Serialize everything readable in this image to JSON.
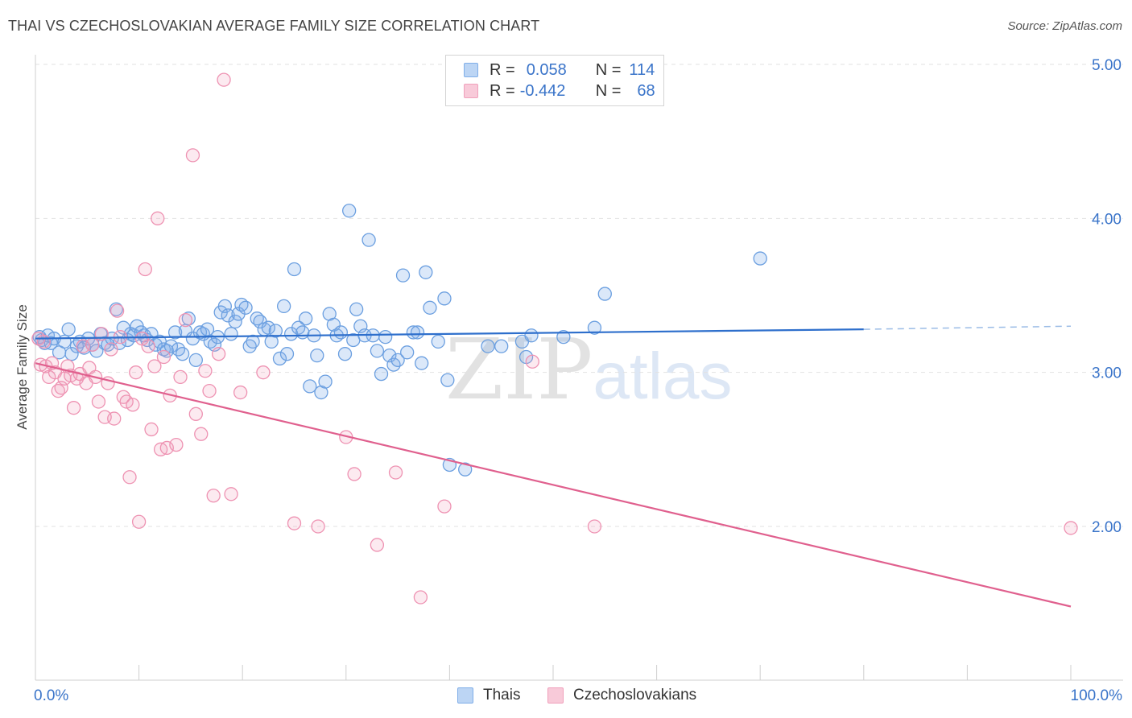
{
  "title": "THAI VS CZECHOSLOVAKIAN AVERAGE FAMILY SIZE CORRELATION CHART",
  "source": "Source: ZipAtlas.com",
  "watermark": {
    "zip": "ZIP",
    "atlas": "atlas"
  },
  "colors": {
    "blue": "#7faee8",
    "blue_line": "#2e6fcc",
    "pink": "#f0a0bb",
    "pink_line": "#e0608e",
    "axis_text": "#3a74c9",
    "grid": "#e2e2e2"
  },
  "legend": {
    "rows": [
      {
        "r_label": "R =",
        "r_value": "0.058",
        "n_label": "N =",
        "n_value": "114"
      },
      {
        "r_label": "R =",
        "r_value": "-0.442",
        "n_label": "N =",
        "n_value": "68"
      }
    ]
  },
  "bottom_legend": {
    "series1": "Thais",
    "series2": "Czechoslovakians"
  },
  "chart_data": {
    "type": "scatter",
    "title": "THAI VS CZECHOSLOVAKIAN AVERAGE FAMILY SIZE CORRELATION CHART",
    "xlabel": "",
    "ylabel": "Average Family Size",
    "xlim": [
      0,
      100
    ],
    "ylim": [
      1.1,
      5.2
    ],
    "x_tick_labels": [
      "0.0%",
      "100.0%"
    ],
    "y_ticks": [
      2.0,
      3.0,
      4.0,
      5.0
    ],
    "y_tick_labels": [
      "2.00",
      "3.00",
      "4.00",
      "5.00"
    ],
    "grid": true,
    "legend_position": "top-center",
    "series": [
      {
        "name": "Thais",
        "color": "#7faee8",
        "trend": {
          "x0": 0,
          "y0": 3.22,
          "x1": 80,
          "y1": 3.28,
          "dash_to": 100,
          "dash_y": 3.3
        },
        "points": [
          [
            0.4,
            3.23
          ],
          [
            0.6,
            3.21
          ],
          [
            0.9,
            3.19
          ],
          [
            1.2,
            3.24
          ],
          [
            1.5,
            3.19
          ],
          [
            1.8,
            3.22
          ],
          [
            2.3,
            3.13
          ],
          [
            2.8,
            3.2
          ],
          [
            3.2,
            3.28
          ],
          [
            3.5,
            3.12
          ],
          [
            4.0,
            3.17
          ],
          [
            4.3,
            3.2
          ],
          [
            4.7,
            3.16
          ],
          [
            5.1,
            3.22
          ],
          [
            5.5,
            3.18
          ],
          [
            5.9,
            3.14
          ],
          [
            6.3,
            3.25
          ],
          [
            6.7,
            3.19
          ],
          [
            7.0,
            3.18
          ],
          [
            7.4,
            3.22
          ],
          [
            7.8,
            3.41
          ],
          [
            8.1,
            3.19
          ],
          [
            8.5,
            3.29
          ],
          [
            8.9,
            3.21
          ],
          [
            9.2,
            3.25
          ],
          [
            9.5,
            3.24
          ],
          [
            9.8,
            3.3
          ],
          [
            10.2,
            3.26
          ],
          [
            10.5,
            3.24
          ],
          [
            10.8,
            3.21
          ],
          [
            11.2,
            3.25
          ],
          [
            11.6,
            3.18
          ],
          [
            12.0,
            3.2
          ],
          [
            12.4,
            3.15
          ],
          [
            12.7,
            3.14
          ],
          [
            13.1,
            3.17
          ],
          [
            13.5,
            3.26
          ],
          [
            13.8,
            3.15
          ],
          [
            14.2,
            3.12
          ],
          [
            14.5,
            3.27
          ],
          [
            14.8,
            3.35
          ],
          [
            15.2,
            3.22
          ],
          [
            15.5,
            3.08
          ],
          [
            15.9,
            3.26
          ],
          [
            16.2,
            3.25
          ],
          [
            16.6,
            3.28
          ],
          [
            16.9,
            3.2
          ],
          [
            17.3,
            3.18
          ],
          [
            17.6,
            3.23
          ],
          [
            17.9,
            3.39
          ],
          [
            18.3,
            3.43
          ],
          [
            18.6,
            3.37
          ],
          [
            18.9,
            3.25
          ],
          [
            19.3,
            3.33
          ],
          [
            19.6,
            3.38
          ],
          [
            19.9,
            3.44
          ],
          [
            20.3,
            3.42
          ],
          [
            20.7,
            3.17
          ],
          [
            21.0,
            3.2
          ],
          [
            21.4,
            3.35
          ],
          [
            21.7,
            3.33
          ],
          [
            22.1,
            3.28
          ],
          [
            22.5,
            3.29
          ],
          [
            22.8,
            3.2
          ],
          [
            23.2,
            3.27
          ],
          [
            23.6,
            3.09
          ],
          [
            24.0,
            3.43
          ],
          [
            24.3,
            3.12
          ],
          [
            24.7,
            3.25
          ],
          [
            25.0,
            3.67
          ],
          [
            25.4,
            3.29
          ],
          [
            25.8,
            3.26
          ],
          [
            26.1,
            3.35
          ],
          [
            26.5,
            2.91
          ],
          [
            26.9,
            3.24
          ],
          [
            27.2,
            3.11
          ],
          [
            27.6,
            2.87
          ],
          [
            28.0,
            2.94
          ],
          [
            28.4,
            3.38
          ],
          [
            28.8,
            3.31
          ],
          [
            29.1,
            3.24
          ],
          [
            29.5,
            3.26
          ],
          [
            29.9,
            3.12
          ],
          [
            30.3,
            4.05
          ],
          [
            30.7,
            3.21
          ],
          [
            31.0,
            3.41
          ],
          [
            31.4,
            3.3
          ],
          [
            31.8,
            3.24
          ],
          [
            32.2,
            3.86
          ],
          [
            32.6,
            3.24
          ],
          [
            33.0,
            3.14
          ],
          [
            33.4,
            2.99
          ],
          [
            33.8,
            3.23
          ],
          [
            34.2,
            3.11
          ],
          [
            34.6,
            3.05
          ],
          [
            35.0,
            3.08
          ],
          [
            35.5,
            3.63
          ],
          [
            35.9,
            3.13
          ],
          [
            36.5,
            3.26
          ],
          [
            36.9,
            3.26
          ],
          [
            37.3,
            3.06
          ],
          [
            37.7,
            3.65
          ],
          [
            38.1,
            3.42
          ],
          [
            38.9,
            3.2
          ],
          [
            39.5,
            3.48
          ],
          [
            39.8,
            2.95
          ],
          [
            40.0,
            2.4
          ],
          [
            41.5,
            2.37
          ],
          [
            43.7,
            3.17
          ],
          [
            45.0,
            3.17
          ],
          [
            47.0,
            3.2
          ],
          [
            47.4,
            3.1
          ],
          [
            47.9,
            3.24
          ],
          [
            51.0,
            3.23
          ],
          [
            54.0,
            3.29
          ],
          [
            55.0,
            3.51
          ],
          [
            70.0,
            3.74
          ]
        ]
      },
      {
        "name": "Czechoslovakians",
        "color": "#f0a0bb",
        "trend": {
          "x0": 0,
          "y0": 3.06,
          "x1": 100,
          "y1": 1.48
        },
        "points": [
          [
            0.3,
            3.22
          ],
          [
            0.5,
            3.05
          ],
          [
            0.8,
            3.2
          ],
          [
            1.0,
            3.04
          ],
          [
            1.3,
            2.97
          ],
          [
            1.6,
            3.06
          ],
          [
            1.9,
            3.0
          ],
          [
            2.2,
            2.88
          ],
          [
            2.5,
            2.9
          ],
          [
            2.8,
            2.96
          ],
          [
            3.1,
            3.04
          ],
          [
            3.4,
            2.98
          ],
          [
            3.7,
            2.77
          ],
          [
            4.0,
            2.96
          ],
          [
            4.3,
            2.99
          ],
          [
            4.6,
            3.17
          ],
          [
            4.9,
            2.93
          ],
          [
            5.2,
            3.03
          ],
          [
            5.5,
            3.18
          ],
          [
            5.8,
            2.97
          ],
          [
            6.1,
            2.81
          ],
          [
            6.4,
            3.25
          ],
          [
            6.7,
            2.71
          ],
          [
            7.0,
            2.93
          ],
          [
            7.3,
            3.15
          ],
          [
            7.6,
            2.7
          ],
          [
            7.9,
            3.4
          ],
          [
            8.2,
            3.23
          ],
          [
            8.5,
            2.84
          ],
          [
            8.8,
            2.81
          ],
          [
            9.1,
            2.32
          ],
          [
            9.4,
            2.79
          ],
          [
            9.7,
            3.0
          ],
          [
            10.0,
            2.03
          ],
          [
            10.3,
            3.22
          ],
          [
            10.6,
            3.67
          ],
          [
            10.9,
            3.17
          ],
          [
            11.2,
            2.63
          ],
          [
            11.5,
            3.04
          ],
          [
            11.8,
            4.0
          ],
          [
            12.1,
            2.5
          ],
          [
            12.4,
            3.1
          ],
          [
            12.7,
            2.51
          ],
          [
            13.0,
            2.85
          ],
          [
            13.6,
            2.53
          ],
          [
            14.0,
            2.97
          ],
          [
            14.5,
            3.34
          ],
          [
            15.2,
            4.41
          ],
          [
            15.5,
            2.73
          ],
          [
            16.0,
            2.6
          ],
          [
            16.4,
            3.01
          ],
          [
            16.8,
            2.88
          ],
          [
            17.2,
            2.2
          ],
          [
            17.7,
            3.12
          ],
          [
            18.2,
            4.9
          ],
          [
            18.9,
            2.21
          ],
          [
            19.8,
            2.87
          ],
          [
            22.0,
            3.0
          ],
          [
            25.0,
            2.02
          ],
          [
            27.3,
            2.0
          ],
          [
            30.0,
            2.58
          ],
          [
            30.8,
            2.34
          ],
          [
            33.0,
            1.88
          ],
          [
            34.8,
            2.35
          ],
          [
            37.2,
            1.54
          ],
          [
            39.5,
            2.13
          ],
          [
            48.0,
            3.07
          ],
          [
            54.0,
            2.0
          ],
          [
            100.0,
            1.99
          ]
        ]
      }
    ]
  }
}
